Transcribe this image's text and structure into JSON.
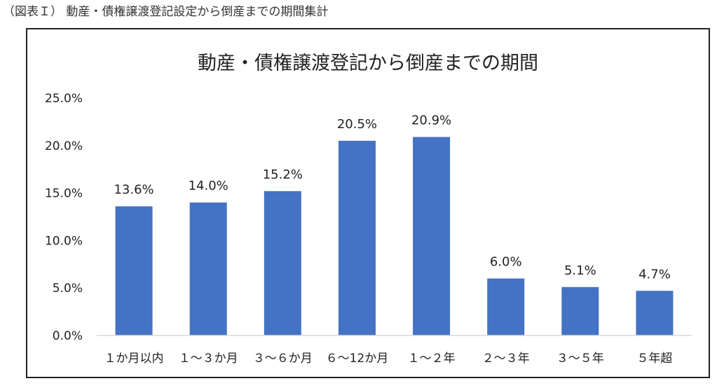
{
  "caption": "（図表Ｉ） 動産・債権譲渡登記設定から倒産までの期間集計",
  "chart_data": {
    "type": "bar",
    "title": "動産・債権譲渡登記から倒産までの期間",
    "categories": [
      "１か月以内",
      "１～３か月",
      "３～６か月",
      "６～12か月",
      "１～２年",
      "２～３年",
      "３～５年",
      "５年超"
    ],
    "values": [
      13.6,
      14.0,
      15.2,
      20.5,
      20.9,
      6.0,
      5.1,
      4.7
    ],
    "data_labels": [
      "13.6%",
      "14.0%",
      "15.2%",
      "20.5%",
      "20.9%",
      "6.0%",
      "5.1%",
      "4.7%"
    ],
    "yticks": [
      0,
      5,
      10,
      15,
      20,
      25
    ],
    "ytick_labels": [
      "0.0%",
      "5.0%",
      "10.0%",
      "15.0%",
      "20.0%",
      "25.0%"
    ],
    "ylim": [
      0,
      25
    ],
    "bar_color": "#4472C4",
    "grid": false,
    "legend": "none"
  }
}
